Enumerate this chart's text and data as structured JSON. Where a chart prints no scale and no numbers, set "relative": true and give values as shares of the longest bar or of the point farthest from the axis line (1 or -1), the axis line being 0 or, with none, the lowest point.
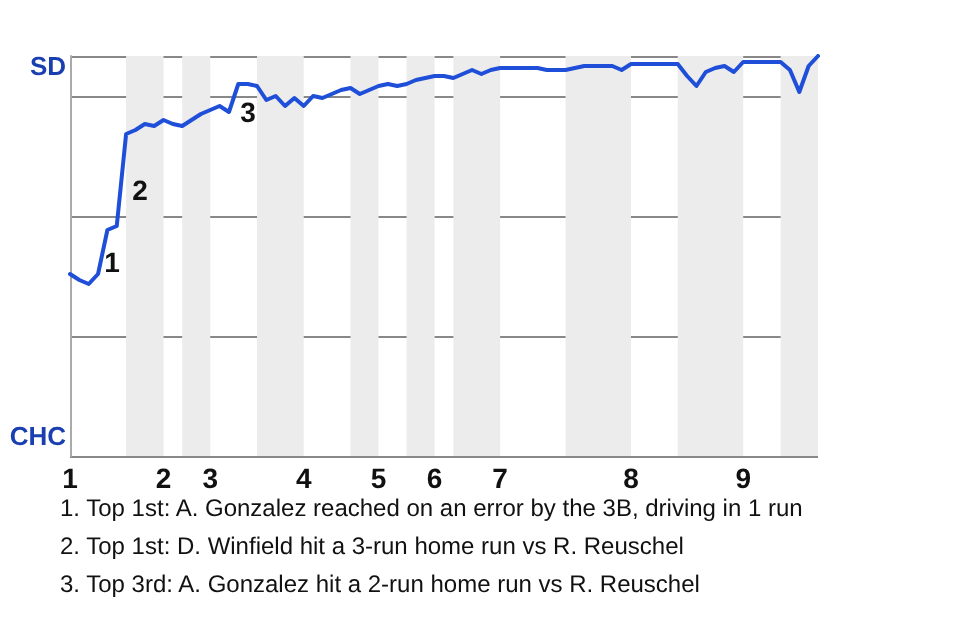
{
  "chart_data": {
    "type": "line",
    "relative": true,
    "categories": [
      "1",
      null,
      null,
      null,
      null,
      null,
      null,
      null,
      null,
      null,
      "2",
      null,
      null,
      null,
      null,
      "3",
      null,
      null,
      null,
      null,
      null,
      null,
      null,
      null,
      null,
      "4",
      null,
      null,
      null,
      null,
      null,
      null,
      null,
      "5",
      null,
      null,
      null,
      null,
      null,
      "6",
      null,
      null,
      null,
      null,
      null,
      null,
      "7",
      null,
      null,
      null,
      null,
      null,
      null,
      null,
      null,
      null,
      null,
      null,
      null,
      null,
      "8",
      null,
      null,
      null,
      null,
      null,
      null,
      null,
      null,
      null,
      null,
      null,
      "9",
      null,
      null,
      null,
      null,
      null,
      null,
      null,
      null
    ],
    "series": [
      {
        "color": "#1f4fd8",
        "values": [
          0.455,
          0.44,
          0.43,
          0.455,
          0.565,
          0.575,
          0.805,
          0.815,
          0.83,
          0.825,
          0.84,
          0.83,
          0.825,
          0.84,
          0.855,
          0.865,
          0.875,
          0.86,
          0.93,
          0.93,
          0.925,
          0.89,
          0.9,
          0.875,
          0.895,
          0.875,
          0.9,
          0.895,
          0.905,
          0.915,
          0.92,
          0.905,
          0.915,
          0.925,
          0.93,
          0.925,
          0.93,
          0.94,
          0.945,
          0.95,
          0.95,
          0.945,
          0.955,
          0.965,
          0.955,
          0.965,
          0.97,
          0.97,
          0.97,
          0.97,
          0.97,
          0.965,
          0.965,
          0.965,
          0.97,
          0.975,
          0.975,
          0.975,
          0.975,
          0.965,
          0.98,
          0.98,
          0.98,
          0.98,
          0.98,
          0.98,
          0.95,
          0.925,
          0.96,
          0.97,
          0.975,
          0.96,
          0.985,
          0.985,
          0.985,
          0.985,
          0.985,
          0.965,
          0.91,
          0.975,
          1
        ]
      }
    ],
    "grid": "y",
    "marker": "none",
    "line_style": "solid",
    "annotations": [
      "SD",
      "CHC",
      "1",
      "2",
      "3",
      "1. Top 1st: A. Gonzalez reached on an error by the 3B, driving in 1 run",
      "2. Top 1st: D. Winfield hit a 3-run home run vs R. Reuschel",
      "3. Top 3rd: A. Gonzalez hit a 2-run home run vs R. Reuschel"
    ]
  }
}
